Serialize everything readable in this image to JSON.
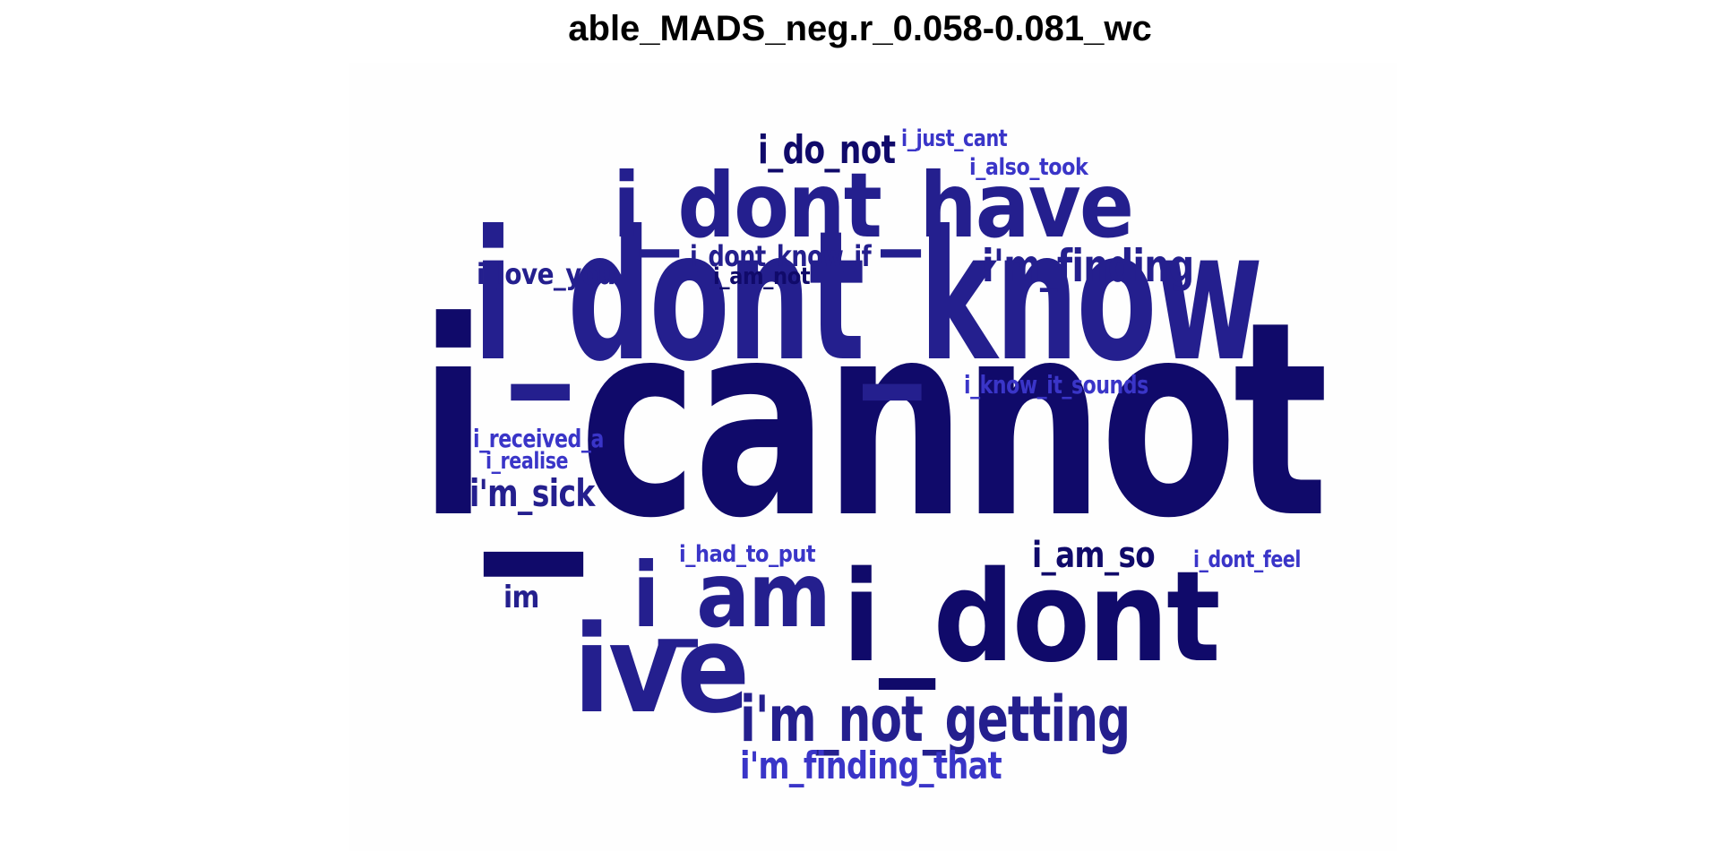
{
  "title": "able_MADS_neg.r_0.058-0.081_wc",
  "colors": {
    "dark": "#100a6a",
    "mid": "#241f8e",
    "light": "#3a35c8"
  },
  "words": [
    {
      "text": "i_cannot",
      "tone": "dark"
    },
    {
      "text": "i_dont_know",
      "tone": "mid"
    },
    {
      "text": "i_dont_have",
      "tone": "mid"
    },
    {
      "text": "i_dont",
      "tone": "dark"
    },
    {
      "text": "ive",
      "tone": "mid"
    },
    {
      "text": "i_am",
      "tone": "mid"
    },
    {
      "text": "i'm_not_getting",
      "tone": "mid"
    },
    {
      "text": "i'm_finding",
      "tone": "mid"
    },
    {
      "text": "i'm_finding_that",
      "tone": "light"
    },
    {
      "text": "i_do_not",
      "tone": "dark"
    },
    {
      "text": "i'm_sick",
      "tone": "mid"
    },
    {
      "text": "i_am_so",
      "tone": "dark"
    },
    {
      "text": "im",
      "tone": "mid"
    },
    {
      "text": "i_dont_know_if",
      "tone": "mid"
    },
    {
      "text": "i_know_it_sounds",
      "tone": "light"
    },
    {
      "text": "i_received_a",
      "tone": "light"
    },
    {
      "text": "i_realise",
      "tone": "light"
    },
    {
      "text": "i_had_to_put",
      "tone": "light"
    },
    {
      "text": "i_dont_feel",
      "tone": "light"
    },
    {
      "text": "i_love_you",
      "tone": "mid"
    },
    {
      "text": "i_am_not",
      "tone": "dark"
    },
    {
      "text": "i_just_cant",
      "tone": "light"
    },
    {
      "text": "i_also_took",
      "tone": "light"
    }
  ]
}
